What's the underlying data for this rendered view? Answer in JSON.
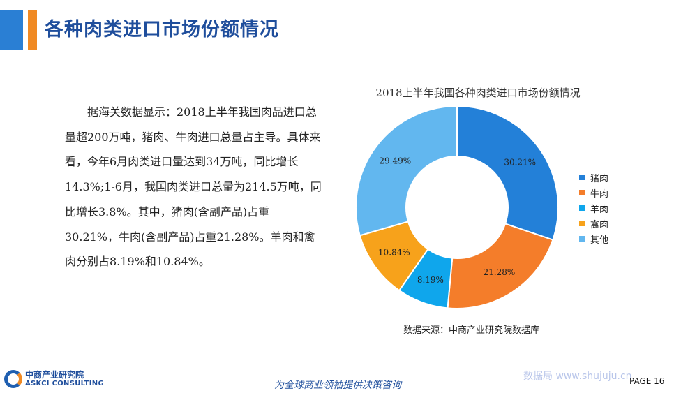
{
  "header": {
    "title": "各种肉类进口市场份额情况"
  },
  "body_text": "据海关数据显示：2018上半年我国肉品进口总量超200万吨，猪肉、牛肉进口总量占主导。具体来看，今年6月肉类进口量达到34万吨，同比增长14.3%;1-6月，我国肉类进口总量为214.5万吨，同比增长3.8%。其中，猪肉(含副产品)占重30.21%，牛肉(含副产品)占重21.28%。羊肉和禽肉分别占8.19%和10.84%。",
  "chart_data": {
    "type": "pie",
    "title": "2018上半年我国各种肉类进口市场份额情况",
    "categories": [
      "猪肉",
      "牛肉",
      "羊肉",
      "禽肉",
      "其他"
    ],
    "values": [
      30.21,
      21.28,
      8.19,
      10.84,
      29.49
    ],
    "labels": [
      "30.21%",
      "21.28%",
      "8.19%",
      "10.84%",
      "29.49%"
    ],
    "colors": [
      "#2380d8",
      "#f47d2a",
      "#0fa6ec",
      "#f7a21b",
      "#62b7ef"
    ],
    "donut": true,
    "legend": "right"
  },
  "source": "数据来源：中商产业研究院数据库",
  "footer": {
    "logo_cn": "中商产业研究院",
    "logo_en": "ASKCI CONSULTING",
    "slogan": "为全球商业领袖提供决策咨询",
    "watermark": "数据局 www.shujuju.cn",
    "page": "PAGE 16"
  }
}
